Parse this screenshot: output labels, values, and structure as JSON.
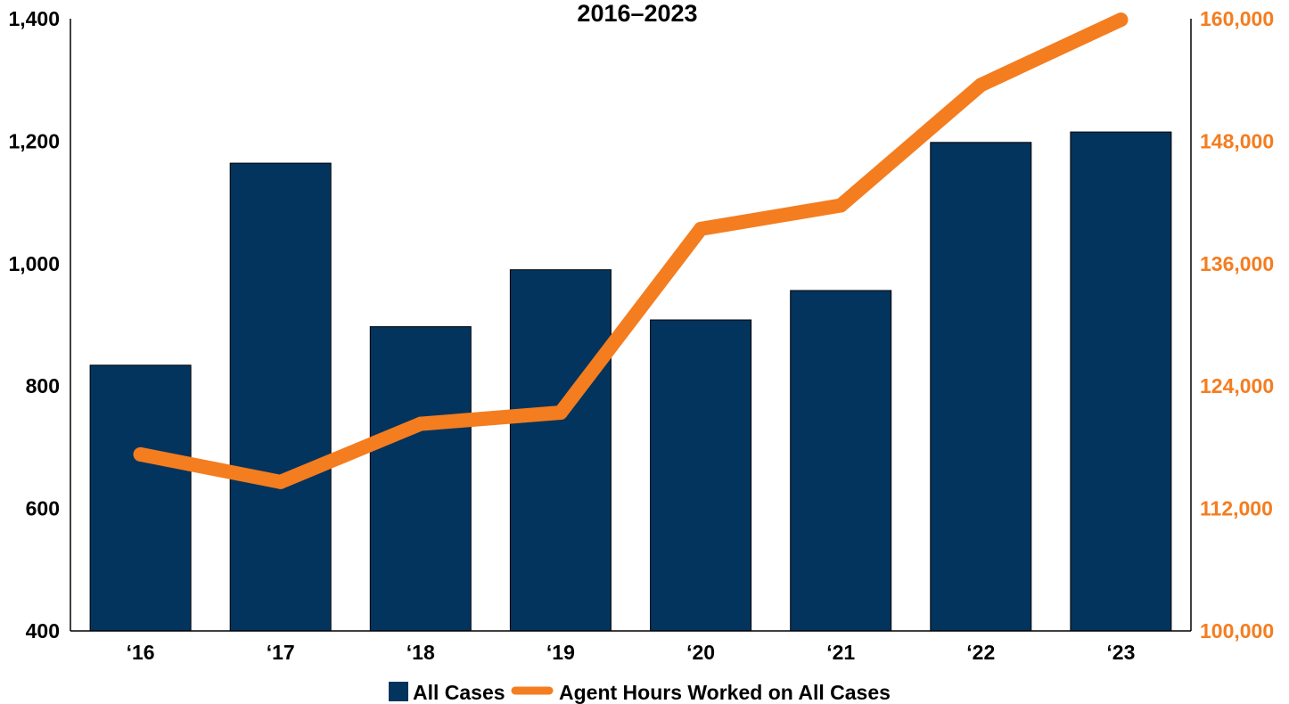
{
  "chart_data": {
    "type": "bar",
    "title": "2016–2023",
    "categories": [
      "‘16",
      "‘17",
      "‘18",
      "‘19",
      "‘20",
      "‘21",
      "‘22",
      "‘23"
    ],
    "series": [
      {
        "name": "All Cases",
        "kind": "bar",
        "axis": "left",
        "color": "#02345e",
        "values": [
          834,
          1164,
          897,
          990,
          908,
          956,
          1198,
          1215
        ]
      },
      {
        "name": "Agent Hours Worked on All Cases",
        "kind": "line",
        "axis": "right",
        "color": "#f47d20",
        "values": [
          117300,
          114600,
          120300,
          121400,
          139400,
          141700,
          153500,
          159900
        ]
      }
    ],
    "y_left": {
      "range": [
        400,
        1400
      ],
      "ticks": [
        400,
        600,
        800,
        1000,
        1200,
        1400
      ],
      "tick_labels": [
        "400",
        "600",
        "800",
        "1,000",
        "1,200",
        "1,400"
      ],
      "color": "#000000"
    },
    "y_right": {
      "range": [
        100000,
        160000
      ],
      "ticks": [
        100000,
        112000,
        124000,
        136000,
        148000,
        160000
      ],
      "tick_labels": [
        "100,000",
        "112,000",
        "124,000",
        "136,000",
        "148,000",
        "160,000"
      ],
      "color": "#f47d20"
    },
    "grid": false,
    "legend_position": "bottom-center"
  }
}
